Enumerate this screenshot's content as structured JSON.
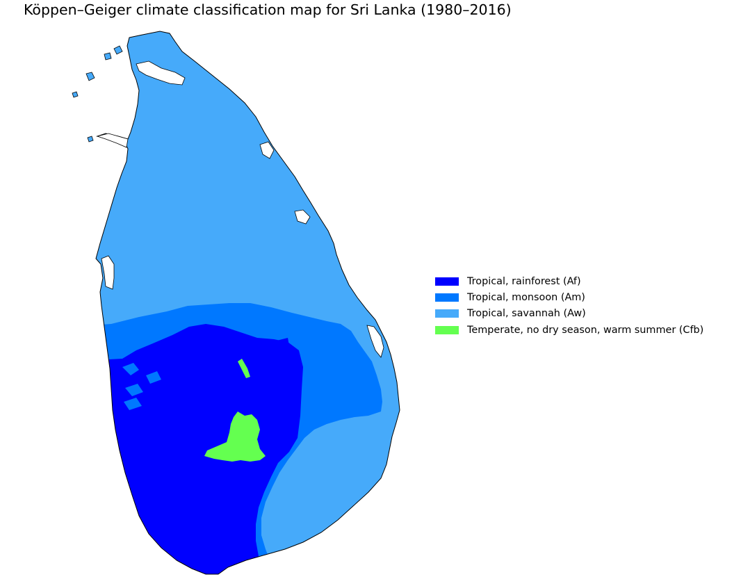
{
  "map": {
    "title": "Köppen–Geiger climate classification map for Sri Lanka (1980–2016)",
    "region": "Sri Lanka",
    "period": "1980–2016",
    "outline_color": "#000000",
    "classes": [
      {
        "code": "Af",
        "label": "Tropical, rainforest (Af)",
        "color": "#0000ff"
      },
      {
        "code": "Am",
        "label": "Tropical, monsoon (Am)",
        "color": "#0078ff"
      },
      {
        "code": "Aw",
        "label": "Tropical, savannah (Aw)",
        "color": "#46aafa"
      },
      {
        "code": "Cfb",
        "label": "Temperate, no dry season, warm summer (Cfb)",
        "color": "#64ff50"
      }
    ]
  }
}
